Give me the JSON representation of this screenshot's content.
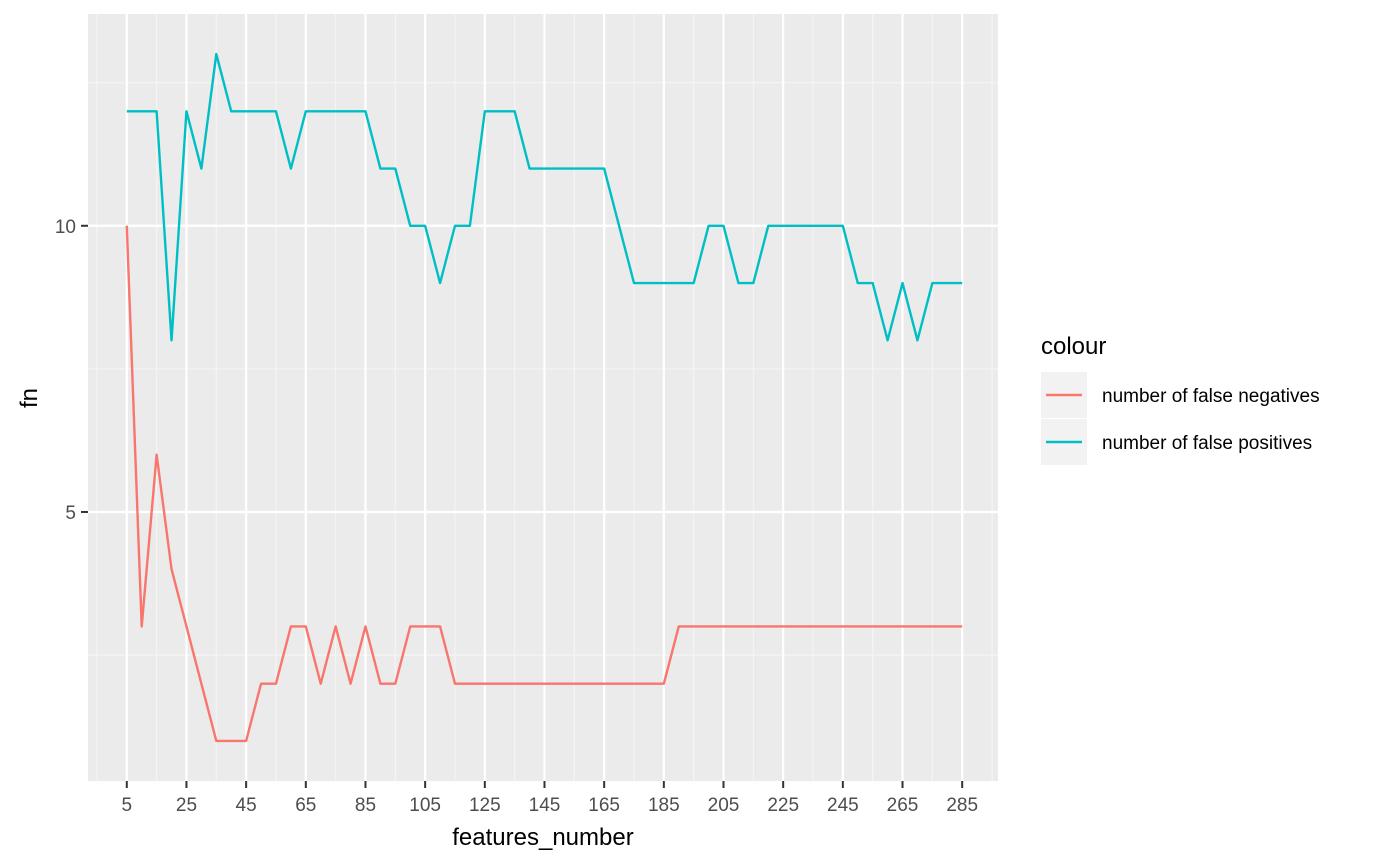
{
  "chart_data": {
    "type": "line",
    "xlabel": "features_number",
    "ylabel": "fn",
    "x_ticks": [
      5,
      25,
      45,
      65,
      85,
      105,
      125,
      145,
      165,
      185,
      205,
      225,
      245,
      265,
      285
    ],
    "y_ticks": [
      5,
      10
    ],
    "xlim": [
      -8,
      297
    ],
    "ylim": [
      0.3,
      13.7
    ],
    "grid": true,
    "legend": {
      "title": "colour",
      "placement": "right"
    },
    "x": [
      5,
      10,
      15,
      20,
      25,
      30,
      35,
      40,
      45,
      50,
      55,
      60,
      65,
      70,
      75,
      80,
      85,
      90,
      95,
      100,
      105,
      110,
      115,
      120,
      125,
      130,
      135,
      140,
      145,
      150,
      155,
      160,
      165,
      170,
      175,
      180,
      185,
      190,
      195,
      200,
      205,
      210,
      215,
      220,
      225,
      230,
      235,
      240,
      245,
      250,
      255,
      260,
      265,
      270,
      275,
      280,
      285
    ],
    "series": [
      {
        "name": "number of false negatives",
        "color": "#F8766D",
        "values": [
          10,
          3,
          6,
          4,
          3,
          2,
          1,
          1,
          1,
          2,
          2,
          3,
          3,
          2,
          3,
          2,
          3,
          2,
          2,
          3,
          3,
          3,
          2,
          2,
          2,
          2,
          2,
          2,
          2,
          2,
          2,
          2,
          2,
          2,
          2,
          2,
          2,
          3,
          3,
          3,
          3,
          3,
          3,
          3,
          3,
          3,
          3,
          3,
          3,
          3,
          3,
          3,
          3,
          3,
          3,
          3,
          3
        ]
      },
      {
        "name": "number of false positives",
        "color": "#00BFC4",
        "values": [
          12,
          12,
          12,
          8,
          12,
          11,
          13,
          12,
          12,
          12,
          12,
          11,
          12,
          12,
          12,
          12,
          12,
          11,
          11,
          10,
          10,
          9,
          10,
          10,
          12,
          12,
          12,
          11,
          11,
          11,
          11,
          11,
          11,
          10,
          9,
          9,
          9,
          9,
          9,
          10,
          10,
          9,
          9,
          10,
          10,
          10,
          10,
          10,
          10,
          9,
          9,
          8,
          9,
          8,
          9,
          9,
          9
        ]
      }
    ]
  }
}
